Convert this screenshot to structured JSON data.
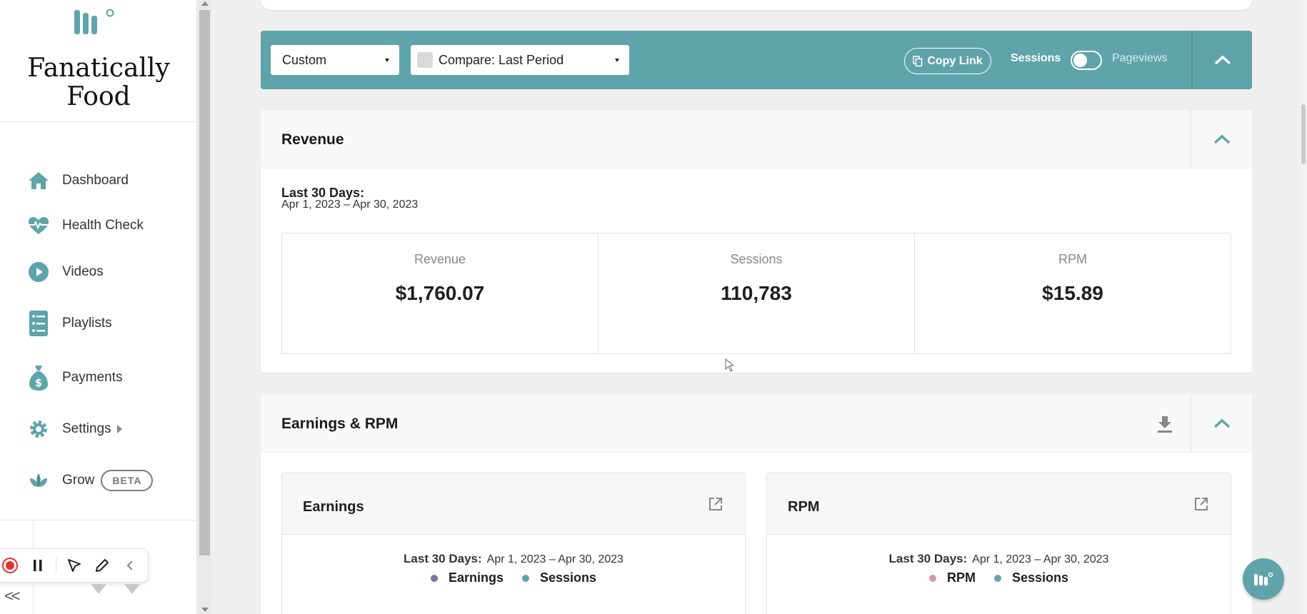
{
  "brand": {
    "name_line1": "Fanatically",
    "name_line2": "Food",
    "logo_icon": "brand-logo-icon"
  },
  "sidebar": {
    "items": [
      {
        "label": "Dashboard",
        "icon": "home-icon"
      },
      {
        "label": "Health Check",
        "icon": "heartbeat-icon"
      },
      {
        "label": "Videos",
        "icon": "play-icon"
      },
      {
        "label": "Playlists",
        "icon": "list-icon"
      },
      {
        "label": "Payments",
        "icon": "money-bag-icon"
      },
      {
        "label": "Settings",
        "icon": "gear-icon"
      },
      {
        "label": "Grow",
        "icon": "leaf-icon",
        "badge": "BETA"
      }
    ]
  },
  "filterbar": {
    "range_select": "Custom",
    "compare_select": "Compare: Last Period",
    "copy_link": "Copy Link",
    "toggle_left": "Sessions",
    "toggle_right": "Pageviews"
  },
  "revenue": {
    "title": "Revenue",
    "period_title": "Last 30 Days:",
    "period_range": "Apr 1, 2023 – Apr 30, 2023",
    "stats": [
      {
        "label": "Revenue",
        "value": "$1,760.07"
      },
      {
        "label": "Sessions",
        "value": "110,783"
      },
      {
        "label": "RPM",
        "value": "$15.89"
      }
    ]
  },
  "earnings_rpm": {
    "title": "Earnings & RPM",
    "earnings": {
      "title": "Earnings",
      "period_title": "Last 30 Days:",
      "period_range": "Apr 1, 2023 – Apr 30, 2023",
      "legend": [
        "Earnings",
        "Sessions"
      ]
    },
    "rpm": {
      "title": "RPM",
      "period_title": "Last 30 Days:",
      "period_range": "Apr 1, 2023 – Apr 30, 2023",
      "legend": [
        "RPM",
        "Sessions"
      ]
    }
  },
  "colors": {
    "accent": "#5fa4ab",
    "earnings_dot": "#7b72a8",
    "sessions_dot": "#5fa4ab",
    "rpm_dot": "#d49a9a"
  }
}
